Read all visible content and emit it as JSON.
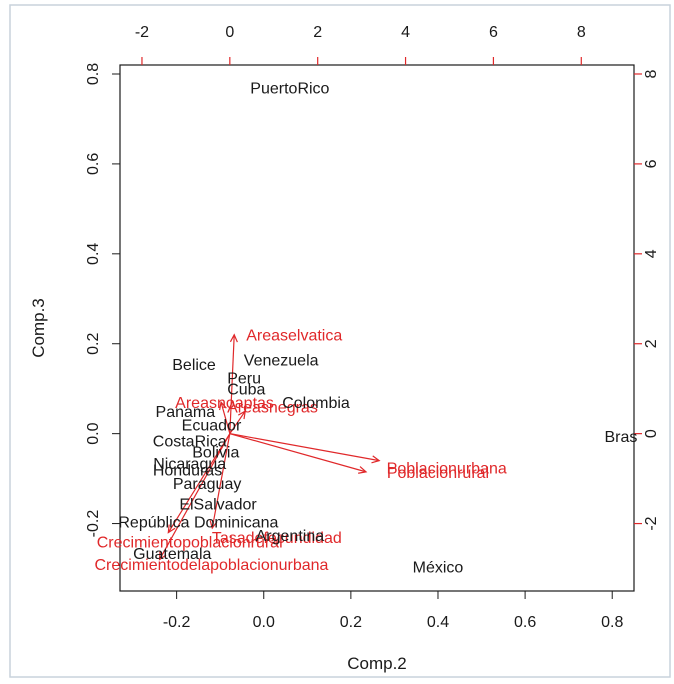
{
  "chart_data": {
    "type": "biplot",
    "title": "",
    "xlabel": "Comp.2",
    "ylabel": "Comp.3",
    "xlim": [
      -0.33,
      0.85
    ],
    "ylim": [
      -0.35,
      0.82
    ],
    "x_ticks": [
      -0.2,
      0.0,
      0.2,
      0.4,
      0.6,
      0.8
    ],
    "x_tick_labels": [
      "-0.2",
      "0.0",
      "0.2",
      "0.4",
      "0.6",
      "0.8"
    ],
    "y_ticks": [
      -0.2,
      0.0,
      0.2,
      0.4,
      0.6,
      0.8
    ],
    "y_tick_labels": [
      "-0.2",
      "0.0",
      "0.2",
      "0.4",
      "0.6",
      "0.8"
    ],
    "top_axis": {
      "lim": [
        -2.5,
        9.2
      ],
      "ticks": [
        -2,
        0,
        2,
        4,
        6,
        8
      ],
      "tick_labels": [
        "-2",
        "0",
        "2",
        "4",
        "6",
        "8"
      ],
      "color": "#e0282a"
    },
    "right_axis": {
      "lim": [
        -3.5,
        8.2
      ],
      "ticks": [
        -2,
        0,
        2,
        4,
        6,
        8
      ],
      "tick_labels": [
        "-2",
        "0",
        "2",
        "4",
        "6",
        "8"
      ],
      "color": "#e0282a"
    },
    "point_color": "#1a1a1a",
    "loading_color": "#e0282a",
    "observations": [
      {
        "label": "PuertoRico",
        "x": 0.06,
        "y": 0.77
      },
      {
        "label": "Venezuela",
        "x": 0.04,
        "y": 0.165
      },
      {
        "label": "Belice",
        "x": -0.16,
        "y": 0.155
      },
      {
        "label": "Peru",
        "x": -0.045,
        "y": 0.125
      },
      {
        "label": "Cuba",
        "x": -0.04,
        "y": 0.1
      },
      {
        "label": "Colombia",
        "x": 0.12,
        "y": 0.07
      },
      {
        "label": "Panama",
        "x": -0.18,
        "y": 0.05
      },
      {
        "label": "Ecuador",
        "x": -0.12,
        "y": 0.02
      },
      {
        "label": "CostaRica",
        "x": -0.17,
        "y": -0.015
      },
      {
        "label": "Bolivia",
        "x": -0.11,
        "y": -0.04
      },
      {
        "label": "Nicaragua",
        "x": -0.17,
        "y": -0.065
      },
      {
        "label": "Honduras",
        "x": -0.175,
        "y": -0.08
      },
      {
        "label": "Paraguay",
        "x": -0.13,
        "y": -0.11
      },
      {
        "label": "ElSalvador",
        "x": -0.105,
        "y": -0.155
      },
      {
        "label": "República Dominicana",
        "x": -0.15,
        "y": -0.195
      },
      {
        "label": "Argentina",
        "x": 0.06,
        "y": -0.225
      },
      {
        "label": "Guatemala",
        "x": -0.21,
        "y": -0.265
      },
      {
        "label": "México",
        "x": 0.4,
        "y": -0.295
      },
      {
        "label": "Bras",
        "x": 0.82,
        "y": -0.005
      }
    ],
    "loadings": [
      {
        "label": "Areaselvatica",
        "x": 0.1,
        "y": 2.2,
        "lx": 0.07,
        "ly": 0.22
      },
      {
        "label": "Areasnoaptas",
        "x": -0.2,
        "y": 0.7,
        "lx": -0.09,
        "ly": 0.07
      },
      {
        "label": "Areasnegras",
        "x": 0.35,
        "y": 0.5,
        "lx": 0.02,
        "ly": 0.06
      },
      {
        "label": "Poblacionurbana",
        "x": 3.4,
        "y": -0.6,
        "lx": 0.42,
        "ly": -0.075
      },
      {
        "label": "Poblacionrural",
        "x": 3.1,
        "y": -0.85,
        "lx": 0.4,
        "ly": -0.085
      },
      {
        "label": "Crecimientopoblacionrural",
        "x": -1.4,
        "y": -2.2,
        "lx": -0.17,
        "ly": -0.24
      },
      {
        "label": "Tasadefecundidad",
        "x": -0.4,
        "y": -2.1,
        "lx": 0.03,
        "ly": -0.23
      },
      {
        "label": "Crecimientodelapoblacionurbana",
        "x": -1.6,
        "y": -2.8,
        "lx": -0.12,
        "ly": -0.29
      }
    ]
  }
}
